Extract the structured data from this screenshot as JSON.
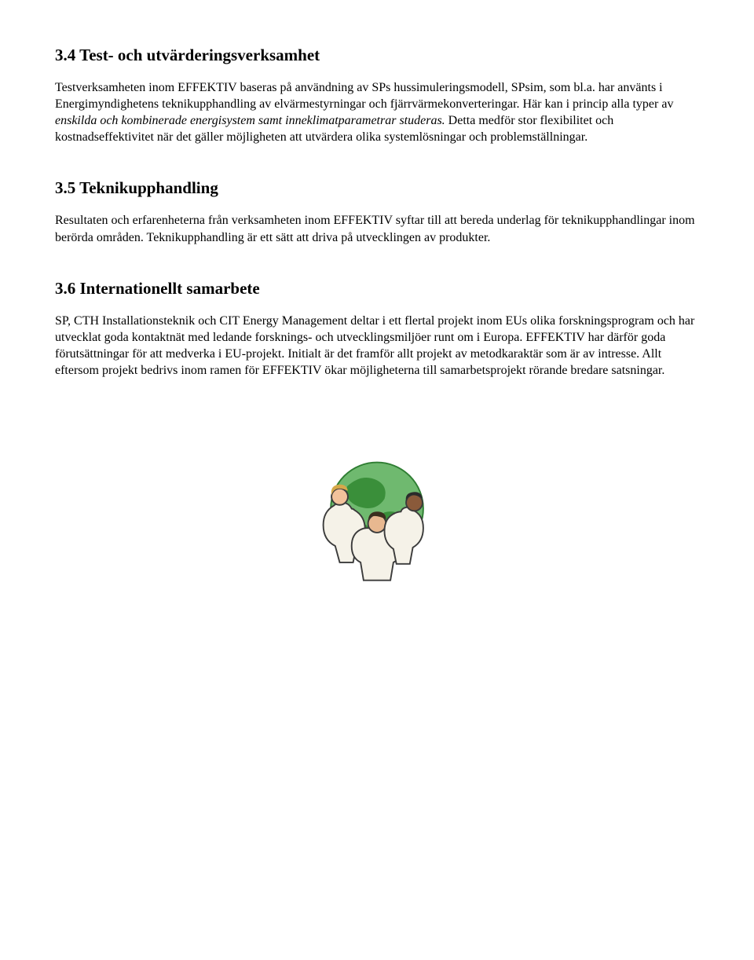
{
  "sections": [
    {
      "heading": "3.4 Test- och utvärderingsverksamhet",
      "paragraphs": [
        {
          "parts": [
            {
              "text": "Testverksamheten inom EFFEKTIV baseras på användning av SPs hussimuleringsmodell, SPsim, som bl.a. har använts i Energimyndighetens teknikupphandling av elvärmestyrningar och fjärrvärmekonverteringar. Här kan i princip alla typer av ",
              "italic": false
            },
            {
              "text": "enskilda och kombinerade energisystem samt inneklimatparametrar studeras.",
              "italic": true
            },
            {
              "text": " Detta medför stor flexibilitet och kostnadseffektivitet när det gäller möjligheten att utvärdera olika systemlösningar och problemställningar.",
              "italic": false
            }
          ]
        }
      ]
    },
    {
      "heading": "3.5 Teknikupphandling",
      "paragraphs": [
        {
          "parts": [
            {
              "text": "Resultaten och erfarenheterna från verksamheten inom EFFEKTIV syftar till att bereda underlag för teknikupphandlingar inom berörda områden. Teknikupphandling är ett sätt att driva på utvecklingen av produkter.",
              "italic": false
            }
          ]
        }
      ]
    },
    {
      "heading": "3.6 Internationellt samarbete",
      "paragraphs": [
        {
          "parts": [
            {
              "text": "SP, CTH Installationsteknik och CIT Energy Management deltar i ett flertal projekt inom EUs olika forskningsprogram och har utvecklat goda kontaktnät med ledande forsknings- och utvecklingsmiljöer runt om i Europa. EFFEKTIV har därför goda förutsättningar för att medverka i EU-projekt. Initialt är det framför allt projekt av metodkaraktär som är av intresse. Allt eftersom projekt bedrivs inom ramen för EFFEKTIV ökar möjligheterna till samarbetsprojekt rörande bredare satsningar.",
              "italic": false
            }
          ]
        }
      ]
    }
  ],
  "illustration": {
    "globe_fill": "#6fb96f",
    "globe_outline": "#2e7d32",
    "continent_fill": "#3a8f3a",
    "person_fill": "#f5f2e8",
    "person_outline": "#3b3b3b",
    "skin1": "#f2c29b",
    "skin2": "#8a5a3a",
    "skin3": "#e8b890",
    "hair1": "#3b2e1e",
    "hair2": "#d6a84a",
    "hair3": "#2b2b2b"
  }
}
